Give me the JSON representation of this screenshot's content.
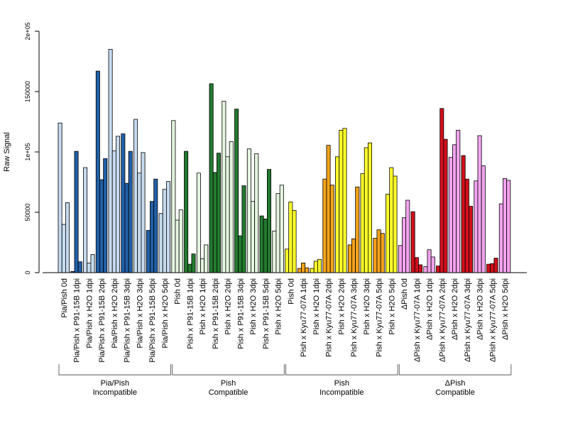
{
  "chart_data": {
    "type": "bar",
    "ylabel": "Raw Signal",
    "ylim": [
      0,
      200000
    ],
    "yticks": [
      {
        "value": 0,
        "label": "0"
      },
      {
        "value": 50000,
        "label": "50000"
      },
      {
        "value": 100000,
        "label": "1e+05"
      },
      {
        "value": 150000,
        "label": "150000"
      },
      {
        "value": 200000,
        "label": "2e+05"
      }
    ],
    "categories": [
      "Pia/Pish 0d",
      "Pia/Pish x P91-15B 1dpi",
      "Pia/Pish x H2O 1dpi",
      "Pia/Pish x P91-15B 2dpi",
      "Pia/Pish x H2O 2dpi",
      "Pia/Pish x P91-15B 3dpi",
      "Pia/Pish x H2O 3dpi",
      "Pia/Pish x P91-15B 5dpi",
      "Pia/Pish x H2O 5dpi",
      "Pish 0d",
      "Pish x P91-15B 1dpi",
      "Pish x H2O 1dpi",
      "Pish x P91-15B 2dpi",
      "Pish x H2O 2dpi",
      "Pish x P91-15B 3dpi",
      "Pish x H2O 3dpi",
      "Pish x P91-15B 5dpi",
      "Pish x H2O 5dpi",
      "Pish 0d",
      "Pish x Kyu77-07A 1dpi",
      "Pish x H2O 1dpi",
      "Pish x Kyu77-07A 2dpi",
      "Pish x H2O 2dpi",
      "Pish x Kyu77-07A 3dpi",
      "Pish x H2O 3dpi",
      "Pish x Kyu77-07A 5dpi",
      "Pish x H2O 5dpi",
      "ΔPish 0d",
      "ΔPish x Kyu77-07A 1dpi",
      "ΔPish x H2O 1dpi",
      "ΔPish x Kyu77-07A 2dpi",
      "ΔPish x H2O 2dpi",
      "ΔPish x Kyu77-07A 3dpi",
      "ΔPish x H2O 3dpi",
      "ΔPish x Kyu77-07A 5dpi",
      "ΔPish x H2O 5dpi"
    ],
    "colors": [
      "#c6dbef",
      "#2260a8",
      "#c6dbef",
      "#2260a8",
      "#c6dbef",
      "#2260a8",
      "#c6dbef",
      "#2260a8",
      "#c6dbef",
      "#e5f5e0",
      "#237a2f",
      "#e5f5e0",
      "#237a2f",
      "#e5f5e0",
      "#237a2f",
      "#e5f5e0",
      "#237a2f",
      "#e5f5e0",
      "#ffff2a",
      "#f5a31a",
      "#ffff2a",
      "#f5a31a",
      "#ffff2a",
      "#f5a31a",
      "#ffff2a",
      "#f5a31a",
      "#ffff2a",
      "#f4a3f0",
      "#d0101c",
      "#f4a3f0",
      "#d0101c",
      "#f4a3f0",
      "#d0101c",
      "#f4a3f0",
      "#d0101c",
      "#f4a3f0"
    ],
    "values": [
      [
        124000,
        40000,
        58000
      ],
      [
        1000,
        100500,
        9000
      ],
      [
        87000,
        8000,
        15000
      ],
      [
        167000,
        77000,
        94500
      ],
      [
        185000,
        101000,
        113000
      ],
      [
        115000,
        74000,
        100500
      ],
      [
        127000,
        82500,
        99500
      ],
      [
        35000,
        59000,
        77500
      ],
      [
        49000,
        69000,
        75500
      ],
      [
        126000,
        43500,
        52000
      ],
      [
        100500,
        7000,
        15500
      ],
      [
        82500,
        11500,
        23000
      ],
      [
        156500,
        83000,
        99000
      ],
      [
        142000,
        96000,
        108500
      ],
      [
        135500,
        30500,
        72000
      ],
      [
        102500,
        59000,
        98500
      ],
      [
        47000,
        44500,
        85500
      ],
      [
        34500,
        65500,
        72500
      ],
      [
        19500,
        58500,
        51500
      ],
      [
        3500,
        8000,
        4000
      ],
      [
        3500,
        9500,
        11000
      ],
      [
        77500,
        105500,
        72500
      ],
      [
        96000,
        118000,
        119500
      ],
      [
        23000,
        28000,
        71000
      ],
      [
        82000,
        103500,
        107500
      ],
      [
        28500,
        35500,
        32500
      ],
      [
        65000,
        87000,
        80000
      ],
      [
        22500,
        45500,
        60000
      ],
      [
        50500,
        12500,
        6500
      ],
      [
        5000,
        19000,
        13000
      ],
      [
        5500,
        136000,
        110500
      ],
      [
        95500,
        106000,
        118000
      ],
      [
        97000,
        77500,
        55000
      ],
      [
        76000,
        113500,
        88500
      ],
      [
        7000,
        7500,
        12000
      ],
      [
        57000,
        78000,
        76500
      ]
    ],
    "groups": [
      {
        "line1": "Pia/Pish",
        "line2": "Incompatible",
        "start": 0,
        "end": 8
      },
      {
        "line1": "Pish",
        "line2": "Compatible",
        "start": 9,
        "end": 17
      },
      {
        "line1": "Pish",
        "line2": "Incompatible",
        "start": 18,
        "end": 26
      },
      {
        "line1": "ΔPish",
        "line2": "Compatible",
        "start": 27,
        "end": 35
      }
    ],
    "grid": false,
    "legend": "none"
  }
}
